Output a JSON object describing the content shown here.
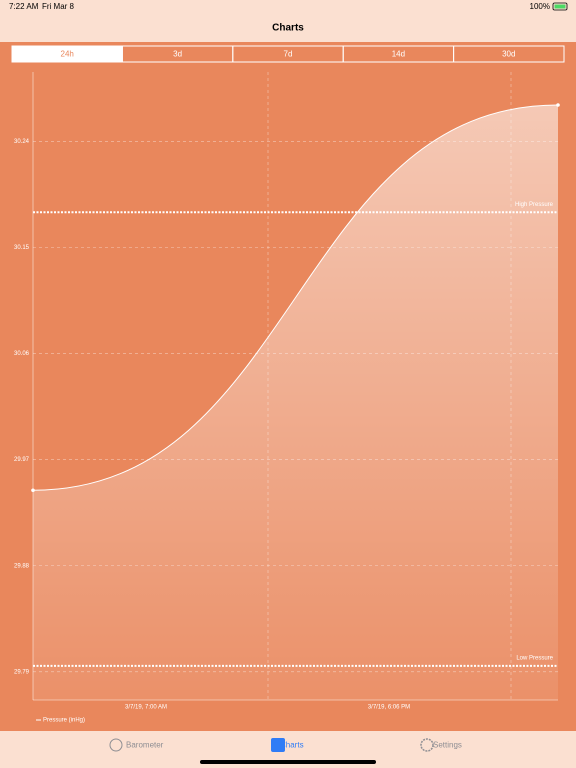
{
  "status_bar": {
    "time": "7:22 AM",
    "date": "Fri Mar 8",
    "battery": "100%"
  },
  "nav": {
    "title": "Charts"
  },
  "segments": {
    "items": [
      "24h",
      "3d",
      "7d",
      "14d",
      "30d"
    ],
    "selected": 0
  },
  "chart_data": {
    "type": "line",
    "series": [
      {
        "name": "Pressure (inHg)",
        "color": "#ffffff",
        "values": [
          29.944,
          30.271
        ]
      }
    ],
    "x_labels": [
      "3/7/19, 7:00 AM",
      "3/7/19, 6:06 PM"
    ],
    "ylim": [
      29.766,
      30.299
    ],
    "yticks": [
      29.79,
      29.88,
      29.97,
      30.06,
      30.15,
      30.24
    ],
    "grid": true,
    "thresholds": [
      {
        "label": "High Pressure",
        "value": 30.18
      },
      {
        "label": "Low Pressure",
        "value": 29.795
      }
    ]
  },
  "tab_bar": {
    "items": [
      "Barometer",
      "Charts",
      "Settings"
    ],
    "selected": 1
  }
}
